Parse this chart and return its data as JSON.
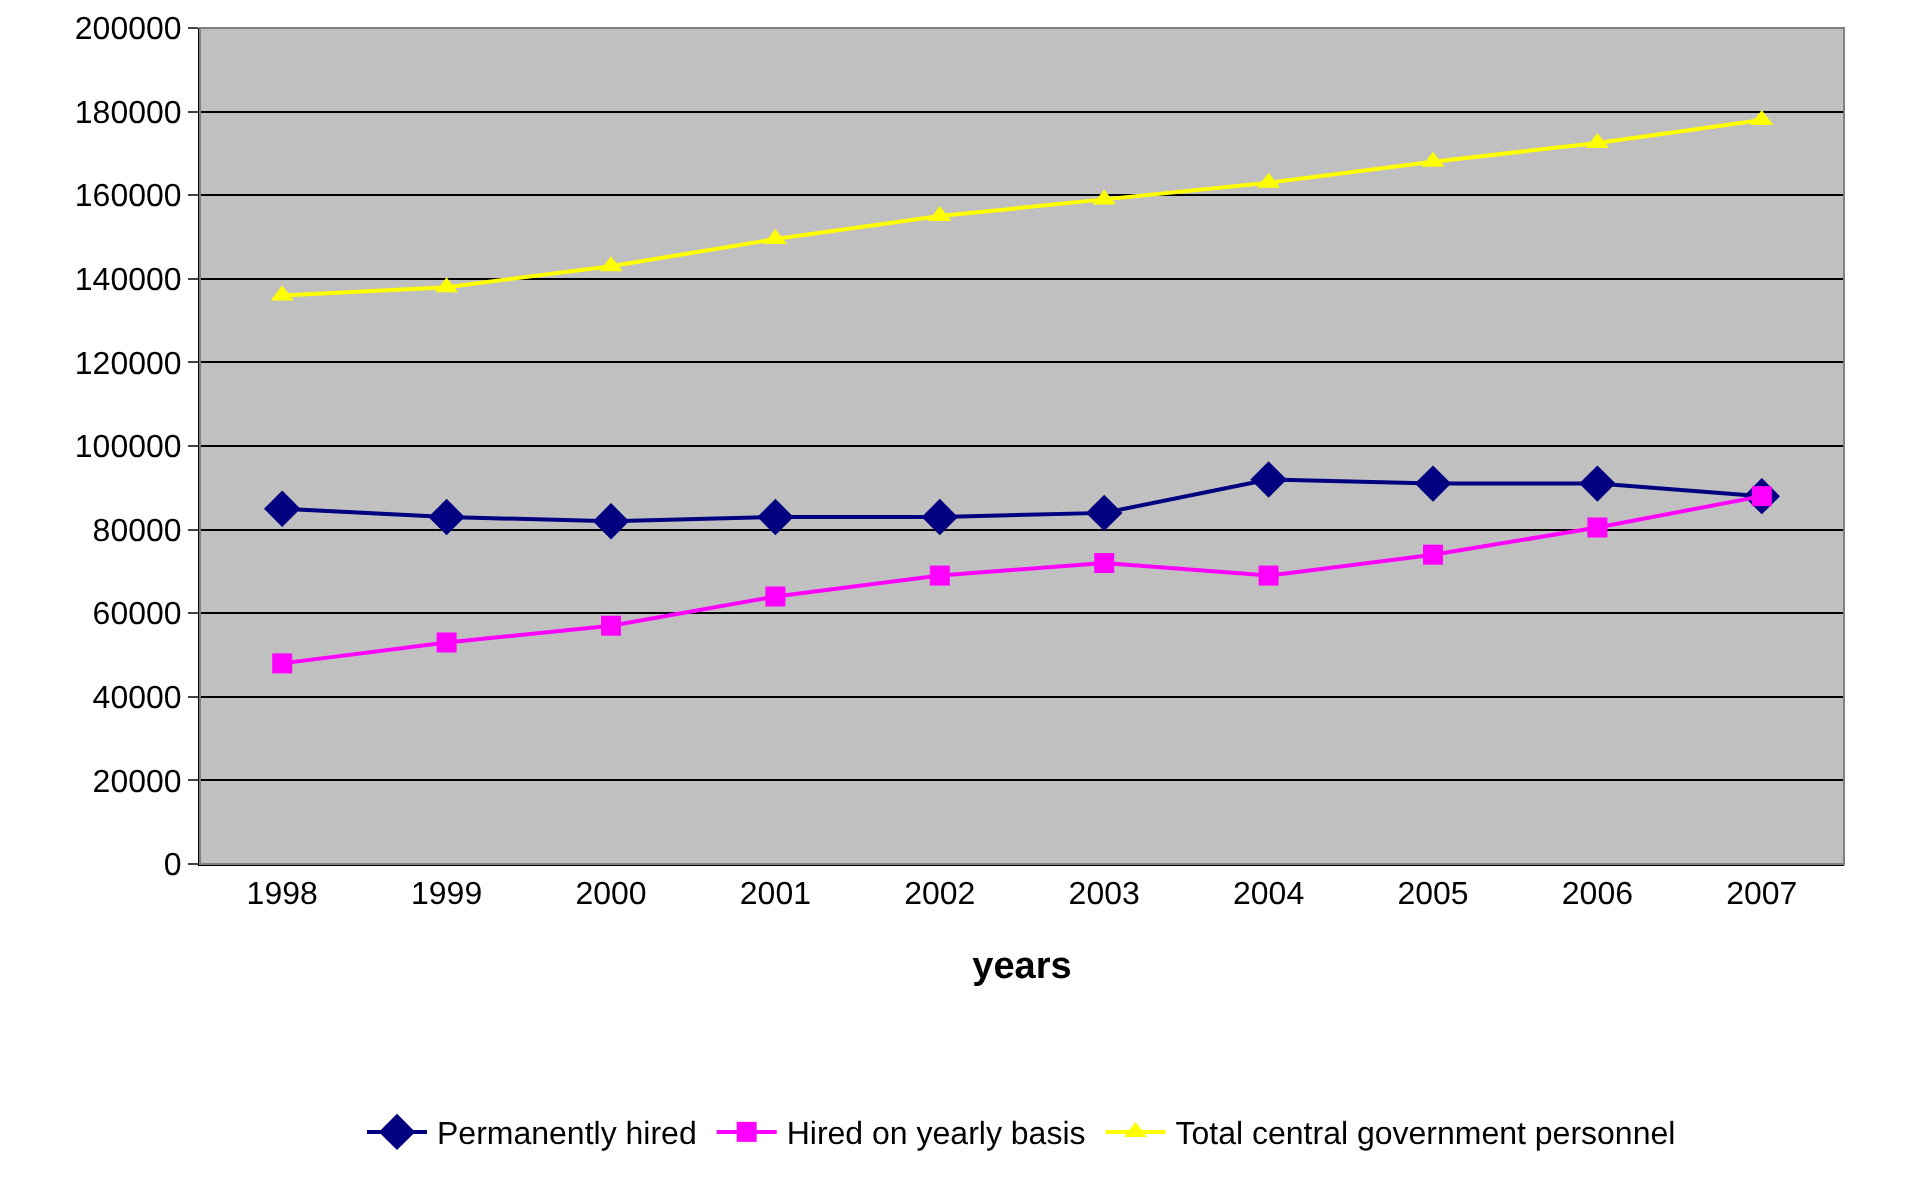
{
  "chart_data": {
    "type": "line",
    "xlabel": "years",
    "categories": [
      "1998",
      "1999",
      "2000",
      "2001",
      "2002",
      "2003",
      "2004",
      "2005",
      "2006",
      "2007"
    ],
    "series": [
      {
        "name": "Permanently hired",
        "color": "#000080",
        "marker": "diamond",
        "values": [
          85000,
          83000,
          82000,
          83000,
          83000,
          84000,
          92000,
          91000,
          91000,
          88000
        ]
      },
      {
        "name": "Hired on yearly basis",
        "color": "#ff00ff",
        "marker": "square",
        "values": [
          48000,
          53000,
          57000,
          64000,
          69000,
          72000,
          69000,
          74000,
          80500,
          88000
        ]
      },
      {
        "name": "Total central government personnel",
        "color": "#ffff00",
        "marker": "triangle",
        "values": [
          136000,
          138000,
          143000,
          149500,
          155000,
          159000,
          163000,
          168000,
          172500,
          178000
        ]
      }
    ],
    "ylim": [
      0,
      200000
    ],
    "yticks": [
      0,
      20000,
      40000,
      60000,
      80000,
      100000,
      120000,
      140000,
      160000,
      180000,
      200000
    ],
    "grid": "y",
    "legend": "bottom",
    "line_style": "solid"
  }
}
